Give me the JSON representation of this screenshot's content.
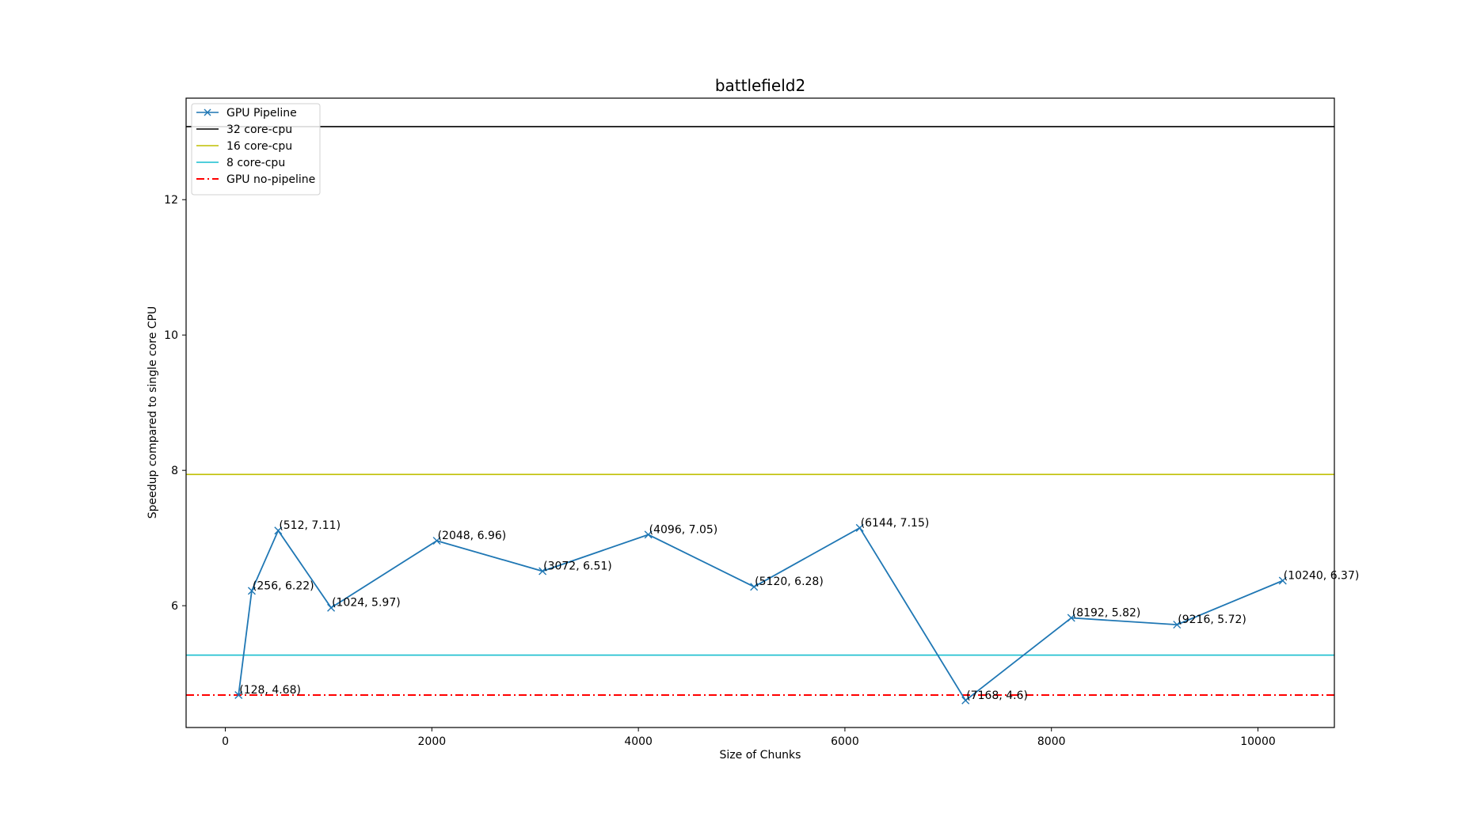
{
  "chart_data": {
    "type": "line",
    "title": "battlefield2",
    "xlabel": "Size of Chunks",
    "ylabel": "Speedup compared to single core CPU",
    "xlim": [
      -380,
      10740
    ],
    "ylim": [
      4.2,
      13.5
    ],
    "xticks": [
      0,
      2000,
      4000,
      6000,
      8000,
      10000
    ],
    "yticks": [
      6,
      8,
      10,
      12
    ],
    "grid": false,
    "legend_position": "top-left",
    "series": [
      {
        "name": "GPU Pipeline",
        "kind": "line-marker",
        "marker": "x",
        "color": "#1f77b4",
        "x": [
          128,
          256,
          512,
          1024,
          2048,
          3072,
          4096,
          5120,
          6144,
          7168,
          8192,
          9216,
          10240
        ],
        "y": [
          4.68,
          6.22,
          7.11,
          5.97,
          6.96,
          6.51,
          7.05,
          6.28,
          7.15,
          4.6,
          5.82,
          5.72,
          6.37
        ],
        "point_labels": [
          "(128, 4.68)",
          "(256, 6.22)",
          "(512, 7.11)",
          "(1024, 5.97)",
          "(2048, 6.96)",
          "(3072, 6.51)",
          "(4096, 7.05)",
          "(5120, 6.28)",
          "(6144, 7.15)",
          "(7168, 4.6)",
          "(8192, 5.82)",
          "(9216, 5.72)",
          "(10240, 6.37)"
        ]
      },
      {
        "name": "32 core-cpu",
        "kind": "hline",
        "value": 13.08,
        "color": "#000000",
        "style": "solid"
      },
      {
        "name": "16 core-cpu",
        "kind": "hline",
        "value": 7.94,
        "color": "#bfbf00",
        "style": "solid"
      },
      {
        "name": "8 core-cpu",
        "kind": "hline",
        "value": 5.27,
        "color": "#17becf",
        "style": "solid"
      },
      {
        "name": "GPU no-pipeline",
        "kind": "hline",
        "value": 4.68,
        "color": "#ff0000",
        "style": "dashdot"
      }
    ]
  }
}
